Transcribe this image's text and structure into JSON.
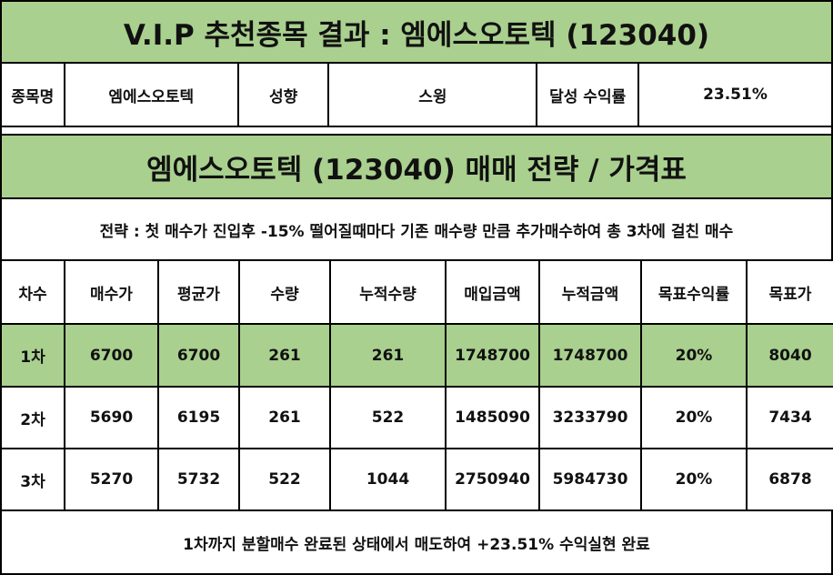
{
  "header": {
    "title": "V.I.P 추천종목 결과 : 엠에스오토텍 (123040)"
  },
  "info": {
    "name_label": "종목명",
    "name_value": "엠에스오토텍",
    "type_label": "성향",
    "type_value": "스윙",
    "return_label": "달성 수익률",
    "return_value": "23.51%"
  },
  "strategy_section": {
    "title": "엠에스오토텍 (123040) 매매 전략 / 가격표",
    "description": "전략 : 첫 매수가 진입후 -15% 떨어질때마다 기존 매수량 만큼 추가매수하여 총 3차에 걸친 매수"
  },
  "table": {
    "headers": [
      "차수",
      "매수가",
      "평균가",
      "수량",
      "누적수량",
      "매입금액",
      "누적금액",
      "목표수익률",
      "목표가"
    ],
    "rows": [
      [
        "1차",
        "6700",
        "6700",
        "261",
        "261",
        "1748700",
        "1748700",
        "20%",
        "8040"
      ],
      [
        "2차",
        "5690",
        "6195",
        "261",
        "522",
        "1485090",
        "3233790",
        "20%",
        "7434"
      ],
      [
        "3차",
        "5270",
        "5732",
        "522",
        "1044",
        "2750940",
        "5984730",
        "20%",
        "6878"
      ]
    ]
  },
  "footer": {
    "text": "1차까지 분할매수 완료된 상태에서 매도하여 +23.51% 수익실현 완료"
  },
  "colors": {
    "highlight_green": "#a9d08e",
    "border": "#000000"
  }
}
